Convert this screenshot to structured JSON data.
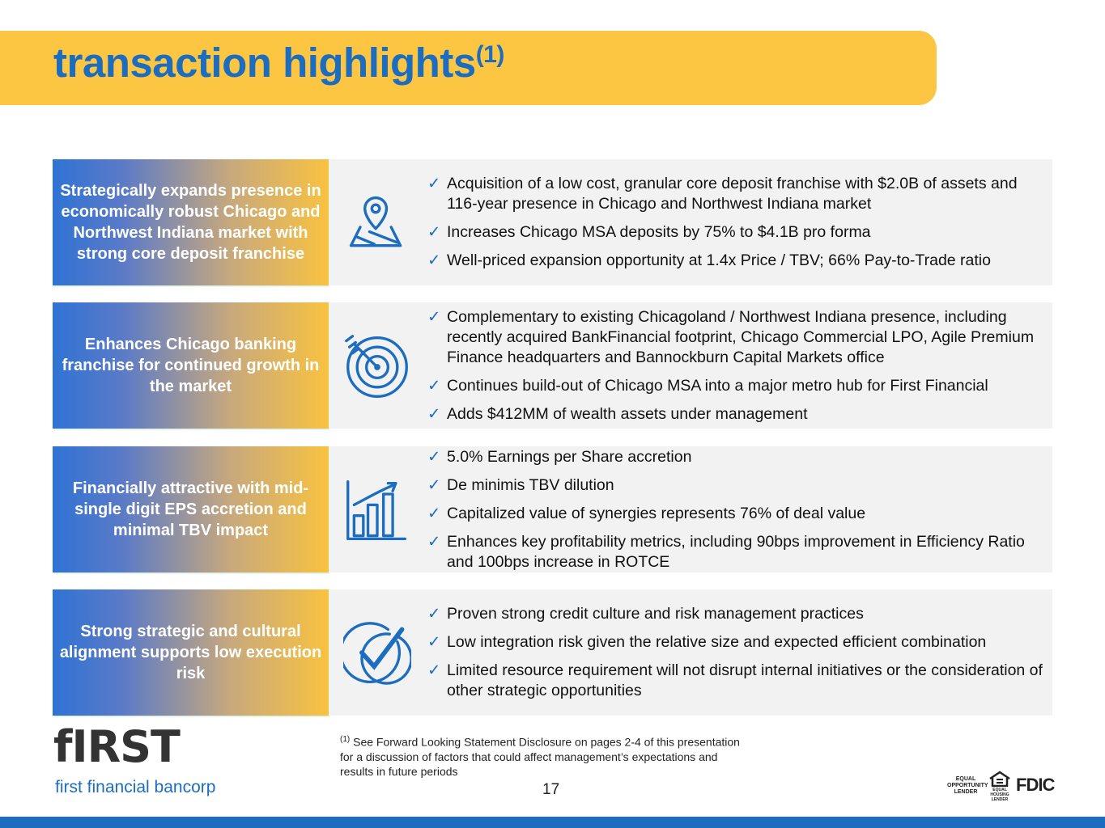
{
  "header": {
    "title": "transaction highlights",
    "title_note": "(1)"
  },
  "rows": [
    {
      "label": "Strategically expands presence in economically robust Chicago and Northwest Indiana market with strong core deposit franchise",
      "bullets": [
        "Acquisition of a low cost, granular core deposit franchise with $2.0B of assets and 116-year presence in Chicago and Northwest Indiana market",
        "Increases Chicago MSA deposits by 75% to $4.1B pro forma",
        "Well-priced expansion opportunity at 1.4x Price / TBV; 66% Pay-to-Trade ratio"
      ]
    },
    {
      "label": "Enhances Chicago banking franchise for continued growth in the market",
      "bullets": [
        "Complementary to existing Chicagoland / Northwest Indiana presence, including recently acquired BankFinancial footprint, Chicago Commercial LPO, Agile Premium Finance headquarters and Bannockburn Capital Markets office",
        "Continues build-out of Chicago MSA into a major metro hub for First Financial",
        "Adds $412MM of wealth assets under management"
      ]
    },
    {
      "label": "Financially attractive with mid-single digit EPS accretion and minimal TBV impact",
      "bullets": [
        "5.0% Earnings per Share accretion",
        "De minimis TBV dilution",
        "Capitalized value of synergies represents 76% of deal value",
        "Enhances key profitability metrics, including 90bps improvement in Efficiency Ratio and 100bps increase in ROTCE"
      ]
    },
    {
      "label": "Strong strategic and cultural alignment supports low execution risk",
      "bullets": [
        "Proven strong credit culture and risk management practices",
        "Low integration risk given the relative size and expected efficient combination",
        "Limited resource requirement will not disrupt internal initiatives or the consideration of other strategic opportunities"
      ]
    }
  ],
  "footnote": {
    "marker": "(1)",
    "text": "See Forward Looking Statement Disclosure on pages 2-4 of this presentation for a discussion of factors that could affect management’s expectations and results in future periods"
  },
  "page_number": 17,
  "logo": {
    "mark": "fIRST",
    "name": "first financial bancorp"
  },
  "badges": {
    "equal_opportunity": "EQUAL OPPORTUNITY LENDER",
    "equal_housing": "EQUAL HOUSING LENDER",
    "fdic": "FDIC"
  }
}
